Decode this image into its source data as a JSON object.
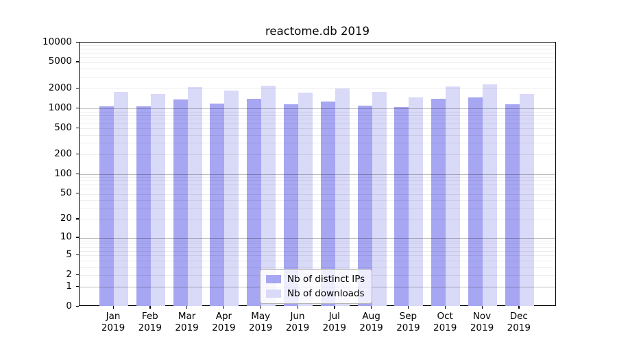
{
  "title": "reactome.db 2019",
  "chart_data": {
    "type": "bar",
    "title": "reactome.db 2019",
    "categories": [
      "Jan 2019",
      "Feb 2019",
      "Mar 2019",
      "Apr 2019",
      "May 2019",
      "Jun 2019",
      "Jul 2019",
      "Aug 2019",
      "Sep 2019",
      "Oct 2019",
      "Nov 2019",
      "Dec 2019"
    ],
    "series": [
      {
        "name": "Nb of distinct IPs",
        "color": "#a6a6f2",
        "values": [
          1090,
          1070,
          1360,
          1190,
          1410,
          1170,
          1280,
          1120,
          1060,
          1420,
          1490,
          1170
        ]
      },
      {
        "name": "Nb of downloads",
        "color": "#d9d9f8",
        "values": [
          1800,
          1680,
          2120,
          1870,
          2240,
          1740,
          2030,
          1800,
          1490,
          2160,
          2310,
          1660
        ]
      }
    ],
    "y_scale": "log10(1+v)",
    "y_ticks": [
      0,
      1,
      2,
      5,
      10,
      20,
      50,
      100,
      200,
      500,
      1000,
      2000,
      5000,
      10000
    ],
    "ylim": [
      0,
      10000
    ],
    "grid": "horizontal, minor lines at 2-9 per decade, major at decades",
    "legend_position": "lower center inside plot",
    "colors": {
      "frame": "#000000",
      "major_grid": "rgba(0,0,0,0.26)",
      "minor_grid": "rgba(0,0,0,0.07)",
      "legend_border": "#b3b3b3"
    }
  }
}
